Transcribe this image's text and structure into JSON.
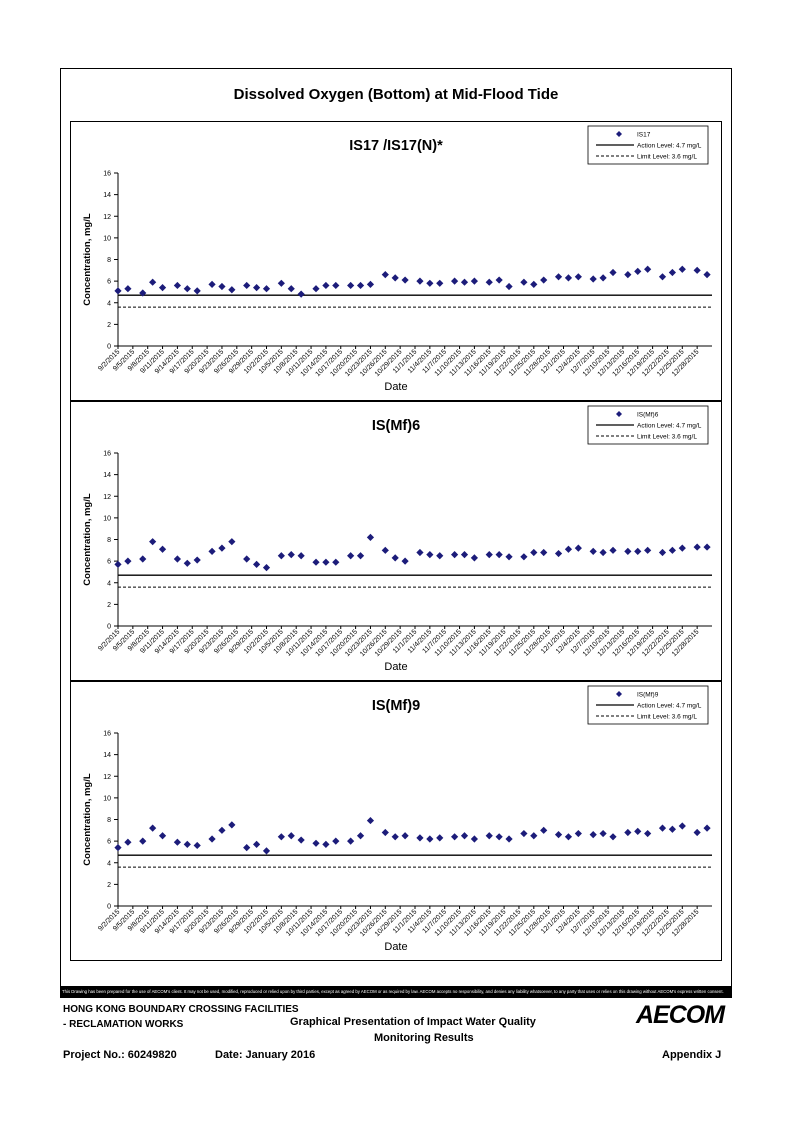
{
  "page_title": "Dissolved Oxygen (Bottom) at Mid-Flood Tide",
  "shared_axes": {
    "ylabel": "Concentration, mg/L",
    "xlabel": "Date",
    "yticks": [
      "0",
      "2",
      "4",
      "6",
      "8",
      "10",
      "12",
      "14",
      "16"
    ],
    "xtick_labels": [
      "9/2/2015",
      "9/5/2015",
      "9/8/2015",
      "9/11/2015",
      "9/14/2015",
      "9/17/2015",
      "9/20/2015",
      "9/23/2015",
      "9/26/2015",
      "9/29/2015",
      "10/2/2015",
      "10/5/2015",
      "10/8/2015",
      "10/11/2015",
      "10/14/2015",
      "10/17/2015",
      "10/20/2015",
      "10/23/2015",
      "10/26/2015",
      "10/29/2015",
      "11/1/2015",
      "11/4/2015",
      "11/7/2015",
      "11/10/2015",
      "11/13/2015",
      "11/16/2015",
      "11/19/2015",
      "11/22/2015",
      "11/25/2015",
      "11/28/2015",
      "12/1/2015",
      "12/4/2015",
      "12/7/2015",
      "12/10/2015",
      "12/13/2015",
      "12/16/2015",
      "12/19/2015",
      "12/22/2015",
      "12/25/2015",
      "12/28/2015"
    ]
  },
  "legend_common": {
    "action_label": "Action Level: 4.7 mg/L",
    "limit_label": "Limit Level: 3.6 mg/L"
  },
  "colors": {
    "marker": "#1c1c7a",
    "line": "#000000"
  },
  "chart_data": [
    {
      "type": "scatter",
      "title": "IS17 /IS17(N)*",
      "xlabel": "Date",
      "ylabel": "Concentration, mg/L",
      "ylim": [
        0,
        16
      ],
      "xlim": [
        "2015-09-02",
        "2015-12-31"
      ],
      "legend_position": "top-right",
      "action_level": 4.7,
      "limit_level": 3.6,
      "series": [
        {
          "name": "IS17",
          "x": [
            "2015-09-02",
            "2015-09-04",
            "2015-09-07",
            "2015-09-09",
            "2015-09-11",
            "2015-09-14",
            "2015-09-16",
            "2015-09-18",
            "2015-09-21",
            "2015-09-23",
            "2015-09-25",
            "2015-09-28",
            "2015-09-30",
            "2015-10-02",
            "2015-10-05",
            "2015-10-07",
            "2015-10-09",
            "2015-10-12",
            "2015-10-14",
            "2015-10-16",
            "2015-10-19",
            "2015-10-21",
            "2015-10-23",
            "2015-10-26",
            "2015-10-28",
            "2015-10-30",
            "2015-11-02",
            "2015-11-04",
            "2015-11-06",
            "2015-11-09",
            "2015-11-11",
            "2015-11-13",
            "2015-11-16",
            "2015-11-18",
            "2015-11-20",
            "2015-11-23",
            "2015-11-25",
            "2015-11-27",
            "2015-11-30",
            "2015-12-02",
            "2015-12-04",
            "2015-12-07",
            "2015-12-09",
            "2015-12-11",
            "2015-12-14",
            "2015-12-16",
            "2015-12-18",
            "2015-12-21",
            "2015-12-23",
            "2015-12-25",
            "2015-12-28",
            "2015-12-30"
          ],
          "y": [
            5.1,
            5.3,
            4.9,
            5.9,
            5.4,
            5.6,
            5.3,
            5.1,
            5.7,
            5.5,
            5.2,
            5.6,
            5.4,
            5.3,
            5.8,
            5.3,
            4.8,
            5.3,
            5.6,
            5.6,
            5.6,
            5.6,
            5.7,
            6.6,
            6.3,
            6.1,
            6.0,
            5.8,
            5.8,
            6.0,
            5.9,
            6.0,
            5.9,
            6.1,
            5.5,
            5.9,
            5.7,
            6.1,
            6.4,
            6.3,
            6.4,
            6.2,
            6.3,
            6.8,
            6.6,
            6.9,
            7.1,
            6.4,
            6.8,
            7.1,
            7.0,
            6.6
          ]
        }
      ]
    },
    {
      "type": "scatter",
      "title": "IS(Mf)6",
      "xlabel": "Date",
      "ylabel": "Concentration, mg/L",
      "ylim": [
        0,
        16
      ],
      "xlim": [
        "2015-09-02",
        "2015-12-31"
      ],
      "legend_position": "top-right",
      "action_level": 4.7,
      "limit_level": 3.6,
      "series": [
        {
          "name": "IS(Mf)6",
          "x": [
            "2015-09-02",
            "2015-09-04",
            "2015-09-07",
            "2015-09-09",
            "2015-09-11",
            "2015-09-14",
            "2015-09-16",
            "2015-09-18",
            "2015-09-21",
            "2015-09-23",
            "2015-09-25",
            "2015-09-28",
            "2015-09-30",
            "2015-10-02",
            "2015-10-05",
            "2015-10-07",
            "2015-10-09",
            "2015-10-12",
            "2015-10-14",
            "2015-10-16",
            "2015-10-19",
            "2015-10-21",
            "2015-10-23",
            "2015-10-26",
            "2015-10-28",
            "2015-10-30",
            "2015-11-02",
            "2015-11-04",
            "2015-11-06",
            "2015-11-09",
            "2015-11-11",
            "2015-11-13",
            "2015-11-16",
            "2015-11-18",
            "2015-11-20",
            "2015-11-23",
            "2015-11-25",
            "2015-11-27",
            "2015-11-30",
            "2015-12-02",
            "2015-12-04",
            "2015-12-07",
            "2015-12-09",
            "2015-12-11",
            "2015-12-14",
            "2015-12-16",
            "2015-12-18",
            "2015-12-21",
            "2015-12-23",
            "2015-12-25",
            "2015-12-28",
            "2015-12-30"
          ],
          "y": [
            5.7,
            6.0,
            6.2,
            7.8,
            7.1,
            6.2,
            5.8,
            6.1,
            6.9,
            7.2,
            7.8,
            6.2,
            5.7,
            5.4,
            6.5,
            6.6,
            6.5,
            5.9,
            5.9,
            5.9,
            6.5,
            6.5,
            8.2,
            7.0,
            6.3,
            6.0,
            6.8,
            6.6,
            6.5,
            6.6,
            6.6,
            6.3,
            6.6,
            6.6,
            6.4,
            6.4,
            6.8,
            6.8,
            6.7,
            7.1,
            7.2,
            6.9,
            6.8,
            7.0,
            6.9,
            6.9,
            7.0,
            6.8,
            7.0,
            7.2,
            7.3,
            7.3
          ]
        }
      ]
    },
    {
      "type": "scatter",
      "title": "IS(Mf)9",
      "xlabel": "Date",
      "ylabel": "Concentration, mg/L",
      "ylim": [
        0,
        16
      ],
      "xlim": [
        "2015-09-02",
        "2015-12-31"
      ],
      "legend_position": "top-right",
      "action_level": 4.7,
      "limit_level": 3.6,
      "series": [
        {
          "name": "IS(Mf)9",
          "x": [
            "2015-09-02",
            "2015-09-04",
            "2015-09-07",
            "2015-09-09",
            "2015-09-11",
            "2015-09-14",
            "2015-09-16",
            "2015-09-18",
            "2015-09-21",
            "2015-09-23",
            "2015-09-25",
            "2015-09-28",
            "2015-09-30",
            "2015-10-02",
            "2015-10-05",
            "2015-10-07",
            "2015-10-09",
            "2015-10-12",
            "2015-10-14",
            "2015-10-16",
            "2015-10-19",
            "2015-10-21",
            "2015-10-23",
            "2015-10-26",
            "2015-10-28",
            "2015-10-30",
            "2015-11-02",
            "2015-11-04",
            "2015-11-06",
            "2015-11-09",
            "2015-11-11",
            "2015-11-13",
            "2015-11-16",
            "2015-11-18",
            "2015-11-20",
            "2015-11-23",
            "2015-11-25",
            "2015-11-27",
            "2015-11-30",
            "2015-12-02",
            "2015-12-04",
            "2015-12-07",
            "2015-12-09",
            "2015-12-11",
            "2015-12-14",
            "2015-12-16",
            "2015-12-18",
            "2015-12-21",
            "2015-12-23",
            "2015-12-25",
            "2015-12-28",
            "2015-12-30"
          ],
          "y": [
            5.4,
            5.9,
            6.0,
            7.2,
            6.5,
            5.9,
            5.7,
            5.6,
            6.2,
            7.0,
            7.5,
            5.4,
            5.7,
            5.1,
            6.4,
            6.5,
            6.1,
            5.8,
            5.7,
            6.0,
            6.0,
            6.5,
            7.9,
            6.8,
            6.4,
            6.5,
            6.3,
            6.2,
            6.3,
            6.4,
            6.5,
            6.2,
            6.5,
            6.4,
            6.2,
            6.7,
            6.5,
            7.0,
            6.6,
            6.4,
            6.7,
            6.6,
            6.7,
            6.4,
            6.8,
            6.9,
            6.7,
            7.2,
            7.1,
            7.4,
            6.8,
            7.2
          ]
        }
      ]
    }
  ],
  "disclaimer": "This Drawing has been prepared for the use of AECOM's client. It may not be used, modified, reproduced or relied upon by third parties, except as agreed by AECOM or as required by law. AECOM accepts no responsibility, and denies any liability whatsoever, to any party that uses or relies on this drawing without AECOM's express written consent.",
  "title_block": {
    "project_line1": "HONG KONG BOUNDARY CROSSING FACILITIES",
    "project_line2": "- RECLAMATION WORKS",
    "drawing_title_line1": "Graphical Presentation of Impact Water Quality",
    "drawing_title_line2": "Monitoring Results",
    "project_no": "Project No.: 60249820",
    "date": "Date: January 2016",
    "appendix": "Appendix J",
    "logo_text": "AECOM"
  }
}
